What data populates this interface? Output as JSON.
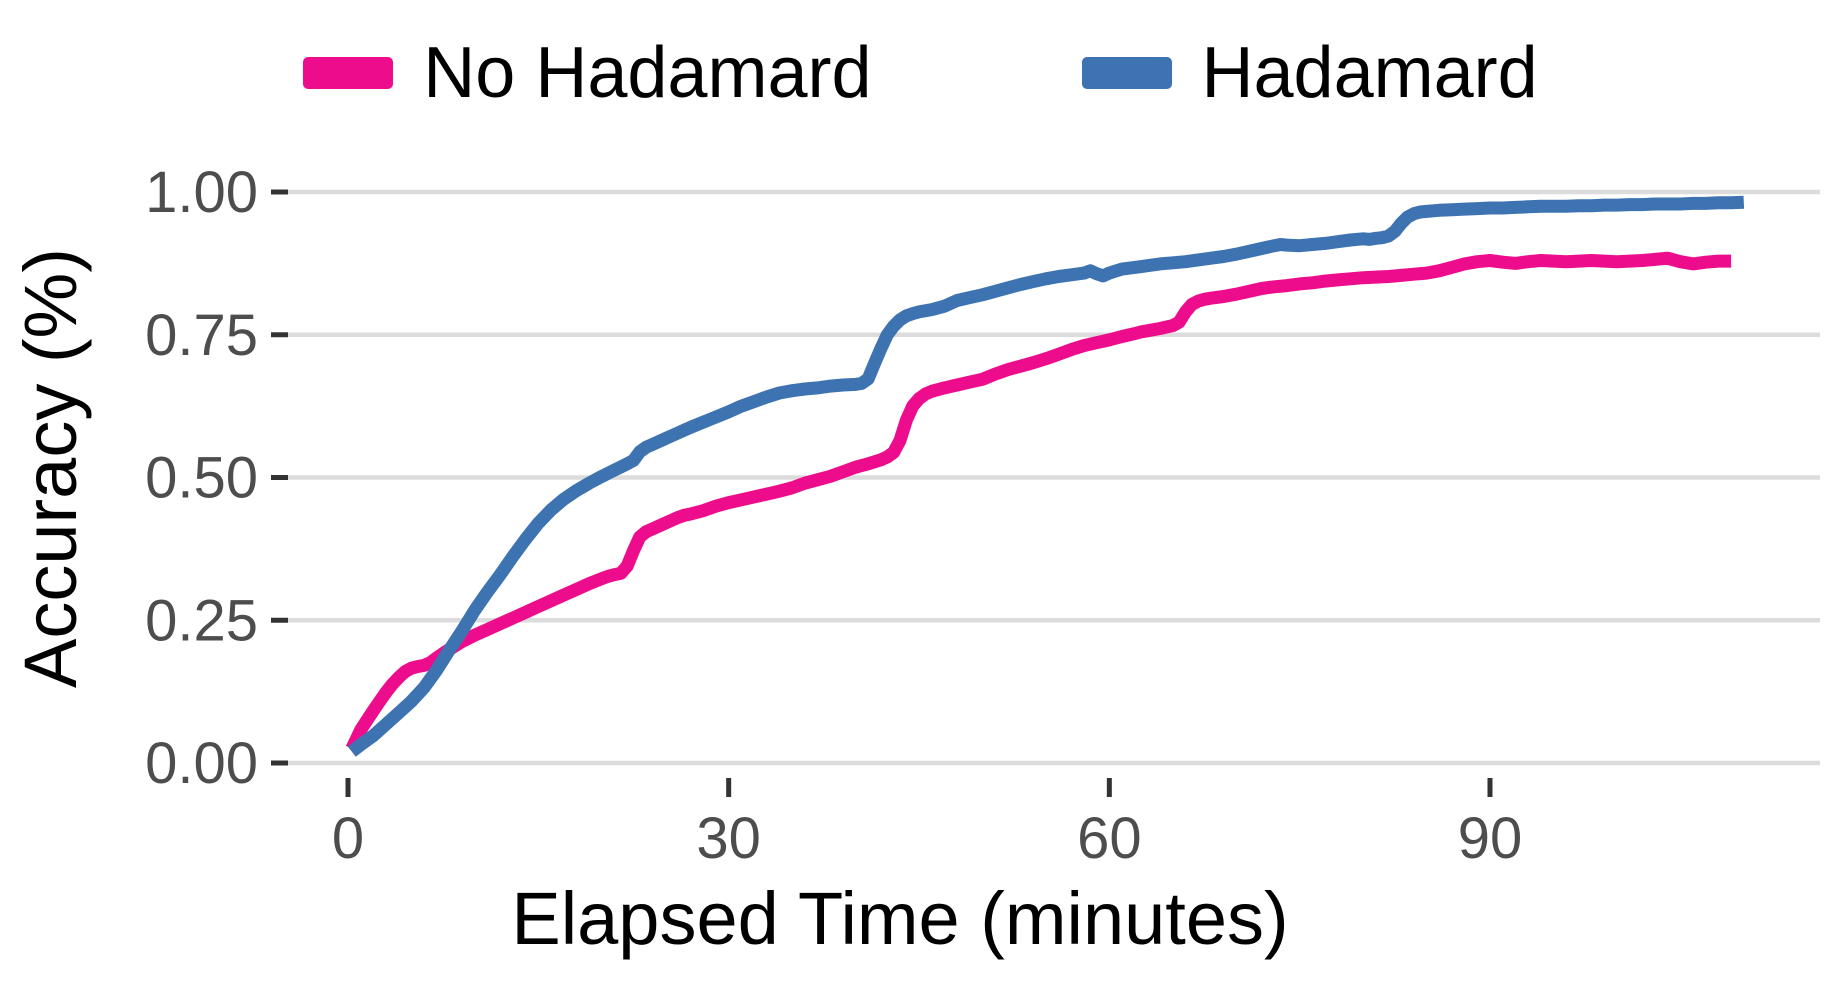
{
  "figure": {
    "background": "#FFFFFF"
  },
  "chart_data": {
    "type": "line",
    "title": "",
    "xlabel": "Elapsed Time (minutes)",
    "ylabel": "Accuracy (%)",
    "xlim": [
      0,
      112
    ],
    "ylim": [
      0,
      1
    ],
    "grid": "horizontal gridlines only, light gray on white",
    "legend_position": "top-center",
    "x_ticks": [
      {
        "value": 0,
        "label": "0"
      },
      {
        "value": 30,
        "label": "30"
      },
      {
        "value": 60,
        "label": "60"
      },
      {
        "value": 90,
        "label": "90"
      }
    ],
    "y_ticks": [
      {
        "value": 0,
        "label": "0.00"
      },
      {
        "value": 0.25,
        "label": "0.25"
      },
      {
        "value": 0.5,
        "label": "0.50"
      },
      {
        "value": 0.75,
        "label": "0.75"
      },
      {
        "value": 1,
        "label": "1.00"
      }
    ],
    "colors": {
      "grid": "#DCDCDC",
      "tick_mark": "#333333",
      "tick_label": "#4D4D4D",
      "axis_title": "#000000"
    },
    "series": [
      {
        "name": "No Hadamard",
        "color": "#ED0D8C",
        "points": [
          [
            0.3,
            0.025
          ],
          [
            1,
            0.058
          ],
          [
            1.5,
            0.075
          ],
          [
            2,
            0.092
          ],
          [
            2.5,
            0.108
          ],
          [
            3,
            0.124
          ],
          [
            3.5,
            0.138
          ],
          [
            4,
            0.15
          ],
          [
            4.5,
            0.16
          ],
          [
            5,
            0.166
          ],
          [
            5.5,
            0.169
          ],
          [
            6,
            0.171
          ],
          [
            6.5,
            0.176
          ],
          [
            7,
            0.184
          ],
          [
            7.5,
            0.192
          ],
          [
            8,
            0.199
          ],
          [
            9,
            0.213
          ],
          [
            10,
            0.224
          ],
          [
            11,
            0.234
          ],
          [
            12,
            0.244
          ],
          [
            13,
            0.254
          ],
          [
            14,
            0.264
          ],
          [
            15,
            0.274
          ],
          [
            16,
            0.284
          ],
          [
            17,
            0.294
          ],
          [
            18,
            0.304
          ],
          [
            19,
            0.314
          ],
          [
            20,
            0.323
          ],
          [
            20.5,
            0.327
          ],
          [
            21,
            0.33
          ],
          [
            21.5,
            0.332
          ],
          [
            22,
            0.345
          ],
          [
            22.5,
            0.372
          ],
          [
            23,
            0.396
          ],
          [
            23.5,
            0.405
          ],
          [
            24,
            0.41
          ],
          [
            25,
            0.42
          ],
          [
            26,
            0.43
          ],
          [
            26.5,
            0.434
          ],
          [
            27,
            0.436
          ],
          [
            28,
            0.442
          ],
          [
            29,
            0.45
          ],
          [
            30,
            0.456
          ],
          [
            31,
            0.461
          ],
          [
            32,
            0.466
          ],
          [
            33,
            0.471
          ],
          [
            34,
            0.476
          ],
          [
            35,
            0.482
          ],
          [
            36,
            0.49
          ],
          [
            37,
            0.496
          ],
          [
            38,
            0.502
          ],
          [
            39,
            0.51
          ],
          [
            40,
            0.518
          ],
          [
            40.5,
            0.521
          ],
          [
            41,
            0.524
          ],
          [
            42,
            0.531
          ],
          [
            42.5,
            0.536
          ],
          [
            43,
            0.544
          ],
          [
            43.5,
            0.565
          ],
          [
            44,
            0.6
          ],
          [
            44.5,
            0.625
          ],
          [
            45,
            0.638
          ],
          [
            45.5,
            0.646
          ],
          [
            46,
            0.651
          ],
          [
            47,
            0.657
          ],
          [
            48,
            0.662
          ],
          [
            49,
            0.667
          ],
          [
            50,
            0.672
          ],
          [
            51,
            0.681
          ],
          [
            52,
            0.689
          ],
          [
            53,
            0.695
          ],
          [
            54,
            0.701
          ],
          [
            55,
            0.708
          ],
          [
            56,
            0.716
          ],
          [
            57,
            0.724
          ],
          [
            58,
            0.731
          ],
          [
            59,
            0.736
          ],
          [
            60,
            0.741
          ],
          [
            61,
            0.747
          ],
          [
            62,
            0.752
          ],
          [
            62.5,
            0.755
          ],
          [
            63,
            0.757
          ],
          [
            64,
            0.761
          ],
          [
            65,
            0.766
          ],
          [
            65.5,
            0.772
          ],
          [
            66,
            0.79
          ],
          [
            66.5,
            0.803
          ],
          [
            67,
            0.809
          ],
          [
            67.5,
            0.812
          ],
          [
            68,
            0.814
          ],
          [
            69,
            0.817
          ],
          [
            70,
            0.821
          ],
          [
            71,
            0.826
          ],
          [
            72,
            0.831
          ],
          [
            73,
            0.834
          ],
          [
            74,
            0.836
          ],
          [
            75,
            0.839
          ],
          [
            76,
            0.841
          ],
          [
            77,
            0.844
          ],
          [
            78,
            0.846
          ],
          [
            79,
            0.848
          ],
          [
            80,
            0.85
          ],
          [
            81,
            0.851
          ],
          [
            82,
            0.852
          ],
          [
            83,
            0.854
          ],
          [
            84,
            0.856
          ],
          [
            85,
            0.858
          ],
          [
            86,
            0.862
          ],
          [
            87,
            0.868
          ],
          [
            88,
            0.874
          ],
          [
            89,
            0.878
          ],
          [
            90,
            0.88
          ],
          [
            91,
            0.877
          ],
          [
            92,
            0.875
          ],
          [
            93,
            0.878
          ],
          [
            94,
            0.88
          ],
          [
            95,
            0.879
          ],
          [
            96,
            0.878
          ],
          [
            97,
            0.879
          ],
          [
            98,
            0.88
          ],
          [
            99,
            0.879
          ],
          [
            100,
            0.878
          ],
          [
            101,
            0.879
          ],
          [
            102,
            0.88
          ],
          [
            103,
            0.882
          ],
          [
            104,
            0.884
          ],
          [
            105,
            0.878
          ],
          [
            106,
            0.874
          ],
          [
            107,
            0.877
          ],
          [
            108,
            0.879
          ],
          [
            109,
            0.879
          ]
        ]
      },
      {
        "name": "Hadamard",
        "color": "#3E73B2",
        "points": [
          [
            0.3,
            0.02
          ],
          [
            1,
            0.032
          ],
          [
            2,
            0.048
          ],
          [
            3,
            0.068
          ],
          [
            4,
            0.088
          ],
          [
            5,
            0.108
          ],
          [
            6,
            0.132
          ],
          [
            7,
            0.163
          ],
          [
            8,
            0.198
          ],
          [
            9,
            0.232
          ],
          [
            10,
            0.268
          ],
          [
            11,
            0.3
          ],
          [
            12,
            0.33
          ],
          [
            13,
            0.362
          ],
          [
            14,
            0.392
          ],
          [
            15,
            0.42
          ],
          [
            16,
            0.443
          ],
          [
            17,
            0.462
          ],
          [
            18,
            0.477
          ],
          [
            19,
            0.49
          ],
          [
            20,
            0.502
          ],
          [
            21,
            0.513
          ],
          [
            22,
            0.524
          ],
          [
            22.5,
            0.53
          ],
          [
            23,
            0.545
          ],
          [
            23.5,
            0.553
          ],
          [
            24,
            0.558
          ],
          [
            25,
            0.568
          ],
          [
            26,
            0.578
          ],
          [
            27,
            0.588
          ],
          [
            28,
            0.597
          ],
          [
            29,
            0.606
          ],
          [
            30,
            0.615
          ],
          [
            31,
            0.625
          ],
          [
            32,
            0.633
          ],
          [
            33,
            0.641
          ],
          [
            34,
            0.648
          ],
          [
            35,
            0.652
          ],
          [
            36,
            0.655
          ],
          [
            37,
            0.657
          ],
          [
            38,
            0.66
          ],
          [
            39,
            0.662
          ],
          [
            40,
            0.663
          ],
          [
            40.5,
            0.665
          ],
          [
            41,
            0.673
          ],
          [
            41.5,
            0.7
          ],
          [
            42,
            0.726
          ],
          [
            42.5,
            0.75
          ],
          [
            43,
            0.765
          ],
          [
            43.5,
            0.776
          ],
          [
            44,
            0.783
          ],
          [
            44.5,
            0.787
          ],
          [
            45,
            0.79
          ],
          [
            46,
            0.794
          ],
          [
            47,
            0.8
          ],
          [
            48,
            0.81
          ],
          [
            49,
            0.815
          ],
          [
            50,
            0.82
          ],
          [
            51,
            0.826
          ],
          [
            52,
            0.832
          ],
          [
            53,
            0.838
          ],
          [
            54,
            0.843
          ],
          [
            55,
            0.848
          ],
          [
            56,
            0.852
          ],
          [
            57,
            0.855
          ],
          [
            58,
            0.858
          ],
          [
            58.5,
            0.862
          ],
          [
            59,
            0.857
          ],
          [
            59.5,
            0.853
          ],
          [
            60,
            0.858
          ],
          [
            61,
            0.865
          ],
          [
            62,
            0.868
          ],
          [
            63,
            0.871
          ],
          [
            64,
            0.874
          ],
          [
            65,
            0.876
          ],
          [
            66,
            0.878
          ],
          [
            67,
            0.881
          ],
          [
            68,
            0.884
          ],
          [
            69,
            0.887
          ],
          [
            70,
            0.891
          ],
          [
            71,
            0.896
          ],
          [
            72,
            0.901
          ],
          [
            73,
            0.906
          ],
          [
            73.5,
            0.908
          ],
          [
            74,
            0.907
          ],
          [
            75,
            0.906
          ],
          [
            76,
            0.908
          ],
          [
            77,
            0.91
          ],
          [
            78,
            0.913
          ],
          [
            79,
            0.916
          ],
          [
            80,
            0.918
          ],
          [
            80.5,
            0.917
          ],
          [
            81,
            0.919
          ],
          [
            81.5,
            0.92
          ],
          [
            82,
            0.923
          ],
          [
            82.5,
            0.931
          ],
          [
            83,
            0.945
          ],
          [
            83.5,
            0.956
          ],
          [
            84,
            0.962
          ],
          [
            84.5,
            0.965
          ],
          [
            85,
            0.966
          ],
          [
            86,
            0.968
          ],
          [
            87,
            0.969
          ],
          [
            88,
            0.97
          ],
          [
            89,
            0.971
          ],
          [
            90,
            0.972
          ],
          [
            91,
            0.972
          ],
          [
            92,
            0.973
          ],
          [
            93,
            0.974
          ],
          [
            94,
            0.975
          ],
          [
            95,
            0.975
          ],
          [
            96,
            0.975
          ],
          [
            97,
            0.976
          ],
          [
            98,
            0.976
          ],
          [
            99,
            0.977
          ],
          [
            100,
            0.977
          ],
          [
            101,
            0.978
          ],
          [
            102,
            0.978
          ],
          [
            103,
            0.979
          ],
          [
            104,
            0.979
          ],
          [
            105,
            0.979
          ],
          [
            106,
            0.98
          ],
          [
            107,
            0.98
          ],
          [
            108,
            0.981
          ],
          [
            109,
            0.981
          ],
          [
            110,
            0.982
          ]
        ]
      }
    ]
  }
}
